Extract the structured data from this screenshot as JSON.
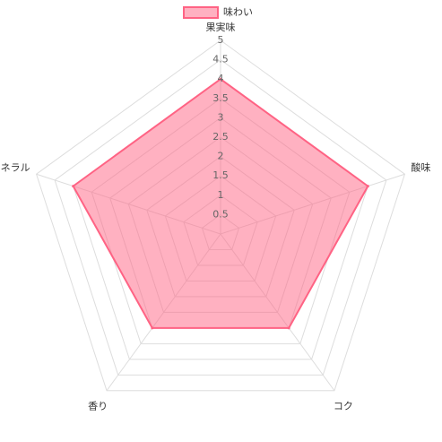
{
  "chart_data": {
    "type": "radar",
    "categories": [
      "果実味",
      "酸味",
      "コク",
      "香り",
      "ミネラル"
    ],
    "series": [
      {
        "name": "味わい",
        "color": "#ff6384",
        "values": [
          4,
          4,
          3,
          3,
          4
        ]
      }
    ],
    "rlim": [
      0,
      5
    ],
    "rticks": [
      0.5,
      1,
      1.5,
      2,
      2.5,
      3,
      3.5,
      4,
      4.5,
      5
    ],
    "grid": true
  }
}
